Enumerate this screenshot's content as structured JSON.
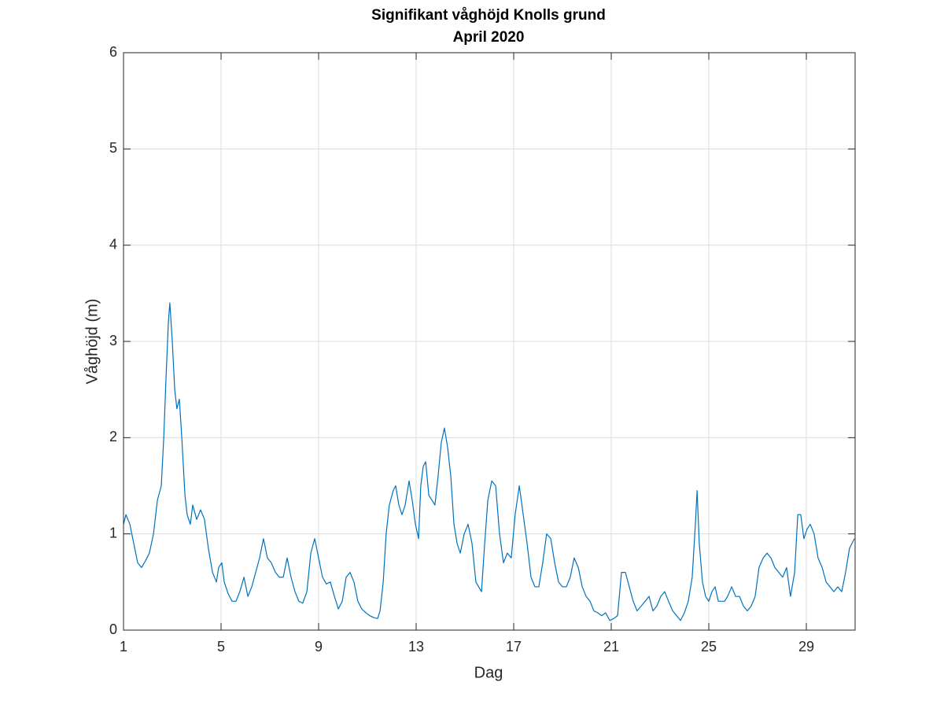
{
  "chart_data": {
    "type": "line",
    "title": "Signifikant våghöjd Knolls grund",
    "subtitle": "April 2020",
    "x_label": "Dag",
    "y_label": "Våghöjd (m)",
    "xlim": [
      1,
      31
    ],
    "ylim": [
      0,
      6
    ],
    "xticks": [
      1,
      5,
      9,
      13,
      17,
      21,
      25,
      29
    ],
    "yticks": [
      0,
      1,
      2,
      3,
      4,
      5,
      6
    ],
    "grid": true,
    "series": [
      {
        "name": "Våghöjd",
        "color": "#0072bd",
        "x": [
          1.0,
          1.1,
          1.26,
          1.42,
          1.58,
          1.74,
          1.9,
          2.06,
          2.23,
          2.39,
          2.55,
          2.65,
          2.74,
          2.84,
          2.9,
          3.0,
          3.1,
          3.19,
          3.29,
          3.39,
          3.52,
          3.61,
          3.74,
          3.84,
          4.0,
          4.16,
          4.32,
          4.48,
          4.65,
          4.81,
          4.9,
          5.03,
          5.13,
          5.29,
          5.45,
          5.61,
          5.77,
          5.94,
          6.1,
          6.26,
          6.42,
          6.58,
          6.74,
          6.9,
          7.06,
          7.23,
          7.39,
          7.55,
          7.71,
          7.87,
          8.03,
          8.19,
          8.35,
          8.52,
          8.68,
          8.84,
          9.0,
          9.16,
          9.32,
          9.48,
          9.65,
          9.81,
          9.97,
          10.13,
          10.29,
          10.45,
          10.61,
          10.77,
          10.94,
          11.1,
          11.26,
          11.42,
          11.52,
          11.65,
          11.77,
          11.9,
          12.06,
          12.16,
          12.29,
          12.42,
          12.55,
          12.71,
          12.84,
          12.97,
          13.1,
          13.19,
          13.29,
          13.39,
          13.52,
          13.65,
          13.77,
          13.9,
          14.03,
          14.16,
          14.29,
          14.42,
          14.55,
          14.68,
          14.81,
          14.97,
          15.13,
          15.29,
          15.45,
          15.68,
          15.81,
          15.94,
          16.1,
          16.26,
          16.42,
          16.58,
          16.74,
          16.9,
          17.06,
          17.23,
          17.39,
          17.55,
          17.71,
          17.87,
          18.03,
          18.19,
          18.35,
          18.52,
          18.68,
          18.84,
          19.0,
          19.16,
          19.32,
          19.48,
          19.65,
          19.81,
          19.97,
          20.13,
          20.29,
          20.45,
          20.61,
          20.77,
          20.94,
          21.1,
          21.26,
          21.42,
          21.58,
          21.74,
          21.9,
          22.06,
          22.23,
          22.39,
          22.55,
          22.71,
          22.87,
          23.03,
          23.19,
          23.35,
          23.52,
          23.68,
          23.84,
          24.0,
          24.16,
          24.32,
          24.45,
          24.52,
          24.61,
          24.74,
          24.87,
          25.0,
          25.13,
          25.26,
          25.39,
          25.52,
          25.65,
          25.77,
          25.94,
          26.1,
          26.26,
          26.42,
          26.58,
          26.74,
          26.9,
          27.06,
          27.23,
          27.39,
          27.55,
          27.71,
          27.87,
          28.03,
          28.19,
          28.35,
          28.52,
          28.65,
          28.77,
          28.9,
          29.03,
          29.16,
          29.32,
          29.48,
          29.65,
          29.81,
          29.97,
          30.13,
          30.29,
          30.45,
          30.61,
          30.77,
          30.97
        ],
        "values": [
          1.1,
          1.2,
          1.1,
          0.9,
          0.7,
          0.65,
          0.72,
          0.8,
          1.0,
          1.35,
          1.5,
          2.0,
          2.6,
          3.2,
          3.4,
          3.0,
          2.5,
          2.3,
          2.4,
          2.0,
          1.4,
          1.2,
          1.1,
          1.3,
          1.15,
          1.25,
          1.15,
          0.85,
          0.6,
          0.5,
          0.65,
          0.7,
          0.5,
          0.38,
          0.3,
          0.3,
          0.4,
          0.55,
          0.35,
          0.45,
          0.6,
          0.75,
          0.95,
          0.75,
          0.7,
          0.6,
          0.55,
          0.55,
          0.75,
          0.55,
          0.4,
          0.3,
          0.28,
          0.4,
          0.8,
          0.95,
          0.75,
          0.55,
          0.48,
          0.5,
          0.35,
          0.22,
          0.3,
          0.55,
          0.6,
          0.5,
          0.3,
          0.22,
          0.18,
          0.15,
          0.13,
          0.12,
          0.2,
          0.5,
          1.0,
          1.3,
          1.45,
          1.5,
          1.3,
          1.2,
          1.3,
          1.55,
          1.35,
          1.1,
          0.95,
          1.5,
          1.7,
          1.75,
          1.4,
          1.35,
          1.3,
          1.6,
          1.95,
          2.1,
          1.9,
          1.6,
          1.1,
          0.9,
          0.8,
          1.0,
          1.1,
          0.9,
          0.5,
          0.4,
          0.9,
          1.35,
          1.55,
          1.5,
          1.0,
          0.7,
          0.8,
          0.75,
          1.2,
          1.5,
          1.2,
          0.9,
          0.55,
          0.45,
          0.45,
          0.7,
          1.0,
          0.95,
          0.7,
          0.5,
          0.45,
          0.45,
          0.55,
          0.75,
          0.65,
          0.45,
          0.35,
          0.3,
          0.2,
          0.18,
          0.15,
          0.18,
          0.1,
          0.12,
          0.15,
          0.6,
          0.6,
          0.45,
          0.3,
          0.2,
          0.25,
          0.3,
          0.35,
          0.2,
          0.25,
          0.35,
          0.4,
          0.3,
          0.2,
          0.15,
          0.1,
          0.18,
          0.3,
          0.55,
          1.1,
          1.45,
          0.9,
          0.5,
          0.35,
          0.3,
          0.4,
          0.45,
          0.3,
          0.3,
          0.3,
          0.35,
          0.45,
          0.35,
          0.35,
          0.25,
          0.2,
          0.25,
          0.35,
          0.65,
          0.75,
          0.8,
          0.75,
          0.65,
          0.6,
          0.55,
          0.65,
          0.35,
          0.6,
          1.2,
          1.2,
          0.95,
          1.05,
          1.1,
          1.0,
          0.75,
          0.65,
          0.5,
          0.45,
          0.4,
          0.45,
          0.4,
          0.6,
          0.85,
          0.95
        ]
      }
    ]
  }
}
